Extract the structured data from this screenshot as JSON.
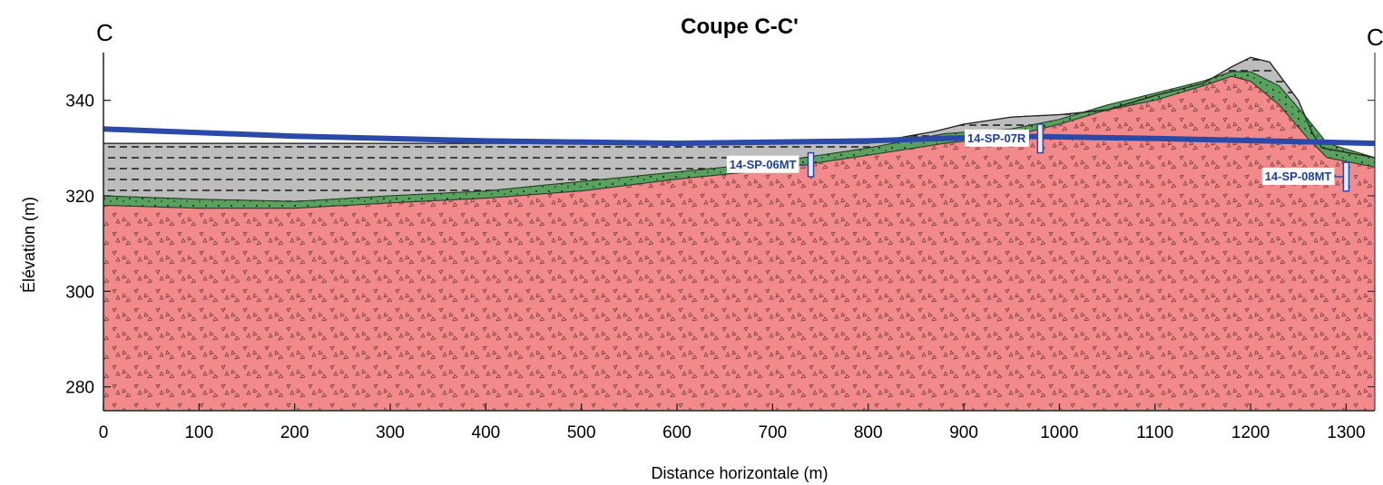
{
  "title": "Coupe C-C'",
  "corner_left": "C",
  "corner_right": "C'",
  "xlabel": "Distance horizontale (m)",
  "ylabel": "Élévation (m)",
  "colors": {
    "bedrock": "#f2898a",
    "till": "#5aa05e",
    "clay": "#bdbdbd",
    "water_table": "#2b4aa8",
    "well_label": "#1f3f9a"
  },
  "chart_data": {
    "type": "area",
    "xlim": [
      0,
      1330
    ],
    "ylim": [
      275,
      350
    ],
    "x_ticks": [
      0,
      100,
      200,
      300,
      400,
      500,
      600,
      700,
      800,
      900,
      1000,
      1100,
      1200,
      1300
    ],
    "y_ticks": [
      280,
      300,
      320,
      340
    ],
    "ground_surface": [
      [
        0,
        331
      ],
      [
        200,
        331
      ],
      [
        400,
        331
      ],
      [
        600,
        331
      ],
      [
        800,
        331
      ],
      [
        870,
        333.5
      ],
      [
        900,
        335
      ],
      [
        950,
        336.5
      ],
      [
        1000,
        337
      ],
      [
        1050,
        338
      ],
      [
        1100,
        341
      ],
      [
        1150,
        343.5
      ],
      [
        1180,
        347
      ],
      [
        1200,
        349
      ],
      [
        1220,
        348
      ],
      [
        1250,
        340
      ],
      [
        1265,
        333
      ],
      [
        1275,
        330
      ],
      [
        1330,
        328
      ]
    ],
    "till_top": [
      [
        0,
        320
      ],
      [
        100,
        319.3
      ],
      [
        200,
        318.8
      ],
      [
        300,
        320
      ],
      [
        400,
        321
      ],
      [
        500,
        323
      ],
      [
        600,
        325
      ],
      [
        700,
        327
      ],
      [
        800,
        330
      ],
      [
        880,
        333
      ],
      [
        950,
        334
      ],
      [
        1000,
        336
      ],
      [
        1050,
        339
      ],
      [
        1100,
        341.5
      ],
      [
        1150,
        344
      ],
      [
        1180,
        346
      ],
      [
        1200,
        346
      ],
      [
        1230,
        343
      ],
      [
        1260,
        336
      ],
      [
        1280,
        331
      ],
      [
        1330,
        328
      ]
    ],
    "bedrock_top": [
      [
        0,
        318
      ],
      [
        100,
        317.4
      ],
      [
        200,
        317.4
      ],
      [
        300,
        318.5
      ],
      [
        400,
        319.5
      ],
      [
        500,
        321
      ],
      [
        600,
        323.5
      ],
      [
        700,
        325.5
      ],
      [
        800,
        328.5
      ],
      [
        880,
        331
      ],
      [
        950,
        332.5
      ],
      [
        1000,
        335
      ],
      [
        1050,
        338
      ],
      [
        1100,
        340
      ],
      [
        1150,
        343
      ],
      [
        1180,
        345
      ],
      [
        1200,
        344
      ],
      [
        1230,
        339
      ],
      [
        1260,
        332
      ],
      [
        1280,
        328
      ],
      [
        1330,
        326
      ]
    ],
    "water_table": [
      [
        0,
        334
      ],
      [
        200,
        332.5
      ],
      [
        400,
        331.5
      ],
      [
        600,
        331
      ],
      [
        800,
        331.5
      ],
      [
        950,
        332.5
      ],
      [
        1100,
        332
      ],
      [
        1330,
        331
      ]
    ],
    "wells": [
      {
        "name": "14-SP-06MT",
        "x": 740,
        "screen_top": 329,
        "screen_bottom": 324
      },
      {
        "name": "14-SP-07R",
        "x": 980,
        "screen_top": 335,
        "screen_bottom": 329
      },
      {
        "name": "14-SP-08MT",
        "x": 1300,
        "screen_top": 327,
        "screen_bottom": 321
      }
    ]
  }
}
